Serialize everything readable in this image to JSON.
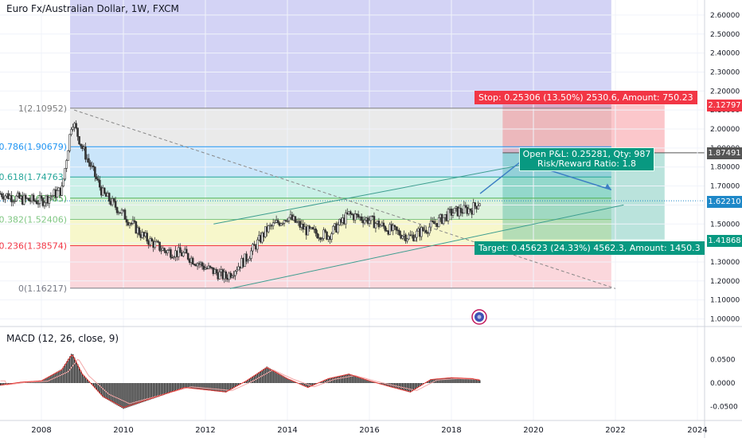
{
  "symbol": {
    "title": "Euro Fx/Australian Dollar, 1W, FXCM"
  },
  "indicator": {
    "label": "MACD (12, 26, close, 9)"
  },
  "colors": {
    "fib_zone": "#8b8be6",
    "stop_red": "#f23645",
    "target_green": "#089981",
    "current_price": "#1e88c8",
    "candles": "#333333",
    "trendline": "#3c9d8f",
    "arrow": "#3d7fc4"
  },
  "fib_levels": [
    {
      "label": "1(2.10952)",
      "value": 2.10952,
      "color": "#7e7e7e"
    },
    {
      "label": "0.786(1.90679)",
      "value": 1.90679,
      "color": "#2196f3"
    },
    {
      "label": "0.618(1.74763)",
      "value": 1.74763,
      "color": "#26a69a"
    },
    {
      "label": "0.5(1.63585)",
      "value": 1.63585,
      "color": "#4caf50"
    },
    {
      "label": "0.382(1.52406)",
      "value": 1.52406,
      "color": "#81c784"
    },
    {
      "label": "0.236(1.38574)",
      "value": 1.38574,
      "color": "#f23645"
    },
    {
      "label": "0(1.16217)",
      "value": 1.16217,
      "color": "#787b86"
    }
  ],
  "position": {
    "stop_text": "Stop: 0.25306 (13.50%) 2530.6, Amount: 750.23",
    "target_text": "Target: 0.45623 (24.33%) 4562.3, Amount: 1450.3",
    "pnl_line1": "Open P&L: 0.25281, Qty: 987",
    "pnl_line2": "Risk/Reward Ratio: 1.8",
    "stop_price": "2.12797",
    "entry_price": "1.87491",
    "current_price": "1.62210",
    "target_price": "1.41868"
  },
  "chart_data": [
    {
      "type": "candlestick",
      "title": "Euro Fx/Australian Dollar, 1W, FXCM",
      "x_ticks": [
        "2008",
        "2010",
        "2012",
        "2014",
        "2016",
        "2018",
        "2020",
        "2022",
        "2024"
      ],
      "y_ticks": [
        "2.60000",
        "2.50000",
        "2.40000",
        "2.30000",
        "2.20000",
        "2.10000",
        "2.00000",
        "1.90000",
        "1.80000",
        "1.70000",
        "1.60000",
        "1.50000",
        "1.40000",
        "1.30000",
        "1.20000",
        "1.10000",
        "1.00000"
      ],
      "ylim": [
        0.98,
        2.66
      ],
      "x": [
        2007.0,
        2007.5,
        2008.0,
        2008.5,
        2008.75,
        2009.0,
        2009.5,
        2010.0,
        2010.5,
        2011.0,
        2011.5,
        2012.0,
        2012.5,
        2013.0,
        2013.5,
        2014.0,
        2014.5,
        2015.0,
        2015.5,
        2016.0,
        2016.5,
        2017.0,
        2017.5,
        2018.0,
        2018.5,
        2018.7
      ],
      "values": [
        1.66,
        1.63,
        1.62,
        1.68,
        2.05,
        1.9,
        1.66,
        1.55,
        1.43,
        1.36,
        1.34,
        1.27,
        1.22,
        1.32,
        1.47,
        1.54,
        1.46,
        1.44,
        1.55,
        1.52,
        1.47,
        1.43,
        1.49,
        1.56,
        1.58,
        1.62
      ]
    },
    {
      "type": "bar",
      "title": "MACD (12, 26, close, 9)",
      "y_ticks": [
        "0.0500",
        "0.0000",
        "-0.0500"
      ],
      "ylim": [
        -0.065,
        0.075
      ],
      "x": [
        2007.0,
        2007.5,
        2008.0,
        2008.5,
        2008.75,
        2009.0,
        2009.5,
        2010.0,
        2010.5,
        2011.0,
        2011.5,
        2012.0,
        2012.5,
        2013.0,
        2013.5,
        2014.0,
        2014.5,
        2015.0,
        2015.5,
        2016.0,
        2016.5,
        2017.0,
        2017.5,
        2018.0,
        2018.5,
        2018.7
      ],
      "values": [
        -0.005,
        0.002,
        0.005,
        0.03,
        0.065,
        0.02,
        -0.03,
        -0.055,
        -0.04,
        -0.025,
        -0.01,
        -0.015,
        -0.02,
        0.005,
        0.035,
        0.01,
        -0.01,
        0.01,
        0.02,
        0.005,
        -0.008,
        -0.02,
        0.008,
        0.012,
        0.01,
        0.006
      ]
    }
  ]
}
